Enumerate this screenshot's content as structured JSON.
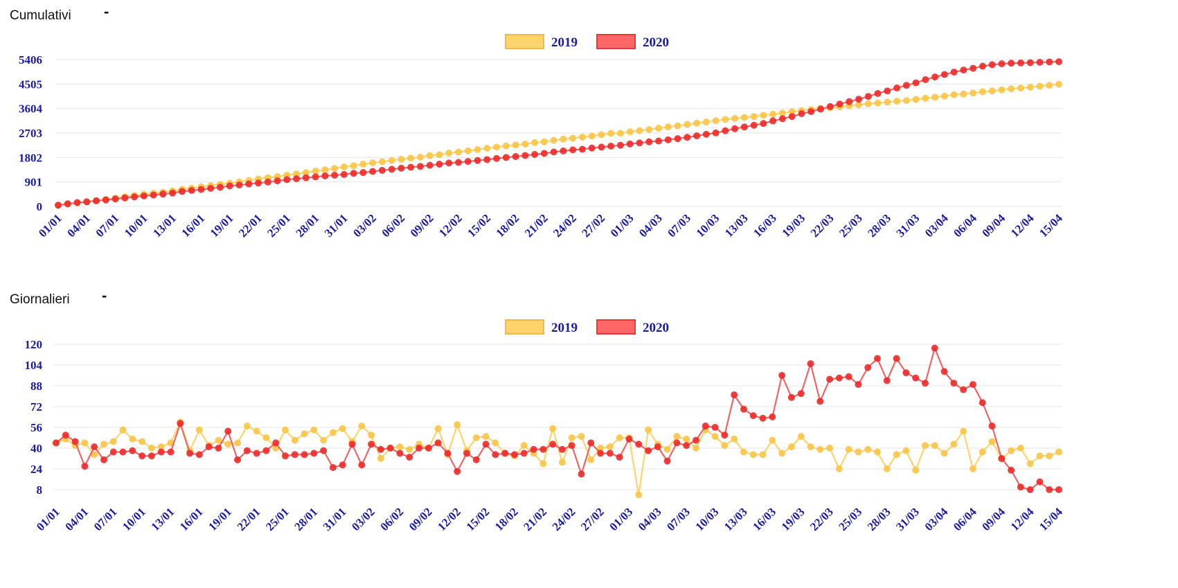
{
  "sections": [
    {
      "title": "Cumulativi",
      "collapse_label": "-"
    },
    {
      "title": "Giornalieri",
      "collapse_label": "-"
    }
  ],
  "colors": {
    "axis_text": "#1a1aa6",
    "grid": "#e6e6e6",
    "series_2019_line": "#ffd36b",
    "series_2019_point": "#f9c548",
    "series_2019_legend_fill": "#ffd36b",
    "series_2019_legend_border": "#f2b84a",
    "series_2020_line": "#f26464",
    "series_2020_point": "#ec2a2a",
    "series_2020_legend_fill": "#ff6666",
    "series_2020_legend_border": "#e23a3a"
  },
  "chart_data": [
    {
      "type": "line",
      "title": "Cumulativi",
      "legend_position": "top-center",
      "grid": true,
      "xlabel": "",
      "ylabel": "",
      "ylim": [
        0,
        5406
      ],
      "yticks": [
        0,
        901,
        1802,
        2703,
        3604,
        4505,
        5406
      ],
      "x_tick_labels": [
        "01/01",
        "04/01",
        "07/01",
        "10/01",
        "13/01",
        "16/01",
        "19/01",
        "22/01",
        "25/01",
        "28/01",
        "31/01",
        "03/02",
        "06/02",
        "09/02",
        "12/02",
        "15/02",
        "18/02",
        "21/02",
        "24/02",
        "27/02",
        "01/03",
        "04/03",
        "07/03",
        "10/03",
        "13/03",
        "16/03",
        "19/03",
        "22/03",
        "25/03",
        "28/03",
        "31/03",
        "03/04",
        "06/04",
        "09/04",
        "12/04",
        "15/04"
      ],
      "points_per_series": 106,
      "series": [
        {
          "name": "2019",
          "values": [
            44,
            91,
            133,
            177,
            212,
            255,
            300,
            354,
            400,
            445,
            485,
            526,
            570,
            630,
            668,
            722,
            764,
            810,
            853,
            897,
            954,
            1007,
            1055,
            1095,
            1149,
            1195,
            1246,
            1300,
            1346,
            1397,
            1452,
            1497,
            1554,
            1603,
            1646,
            1694,
            1733,
            1775,
            1814,
            1869,
            1904,
            1963,
            2001,
            2043,
            2091,
            2140,
            2184,
            2227,
            2261,
            2295,
            2350,
            2378,
            2428,
            2478,
            2510,
            2550,
            2591,
            2640,
            2688,
            2692,
            2746,
            2789,
            2828,
            2878,
            2926,
            2963,
            3017,
            3066,
            3107,
            3154,
            3200,
            3239,
            3275,
            3310,
            3356,
            3395,
            3436,
            3485,
            3526,
            3565,
            3605,
            3629,
            3668,
            3704,
            3743,
            3780,
            3805,
            3839,
            3874,
            3898,
            3940,
            3982,
            4018,
            4060,
            4113,
            4138,
            4174,
            4219,
            4251,
            4289,
            4329,
            4357,
            4390,
            4424,
            4458,
            4497
          ]
        },
        {
          "name": "2020",
          "values": [
            44,
            94,
            139,
            165,
            206,
            237,
            274,
            311,
            350,
            384,
            418,
            455,
            492,
            551,
            587,
            622,
            663,
            703,
            756,
            787,
            825,
            859,
            897,
            941,
            985,
            1018,
            1054,
            1086,
            1123,
            1148,
            1175,
            1218,
            1245,
            1288,
            1327,
            1366,
            1405,
            1441,
            1474,
            1514,
            1554,
            1597,
            1619,
            1655,
            1691,
            1722,
            1765,
            1800,
            1835,
            1874,
            1913,
            1952,
            2002,
            2041,
            2082,
            2103,
            2147,
            2183,
            2219,
            2252,
            2299,
            2336,
            2377,
            2407,
            2452,
            2495,
            2542,
            2599,
            2655,
            2705,
            2786,
            2858,
            2924,
            2987,
            3052,
            3148,
            3227,
            3309,
            3414,
            3490,
            3582,
            3675,
            3769,
            3858,
            3947,
            4049,
            4158,
            4250,
            4359,
            4456,
            4550,
            4667,
            4766,
            4856,
            4945,
            5020,
            5085,
            5160,
            5218,
            5250,
            5272,
            5281,
            5292,
            5306,
            5318,
            5326
          ]
        }
      ]
    },
    {
      "type": "line",
      "title": "Giornalieri",
      "legend_position": "top-center",
      "grid": true,
      "xlabel": "",
      "ylabel": "",
      "ylim": [
        0,
        120
      ],
      "yticks": [
        8,
        24,
        40,
        56,
        72,
        88,
        104,
        120
      ],
      "x_tick_labels": [
        "01/01",
        "04/01",
        "07/01",
        "10/01",
        "13/01",
        "16/01",
        "19/01",
        "22/01",
        "25/01",
        "28/01",
        "31/01",
        "03/02",
        "06/02",
        "09/02",
        "12/02",
        "15/02",
        "18/02",
        "21/02",
        "24/02",
        "27/02",
        "01/03",
        "04/03",
        "07/03",
        "10/03",
        "13/03",
        "16/03",
        "19/03",
        "22/03",
        "25/03",
        "28/03",
        "31/03",
        "03/04",
        "06/04",
        "09/04",
        "12/04",
        "15/04"
      ],
      "points_per_series": 106,
      "series": [
        {
          "name": "2019",
          "values": [
            44,
            47,
            42,
            44,
            35,
            43,
            45,
            54,
            47,
            45,
            40,
            41,
            44,
            60,
            38,
            54,
            42,
            46,
            43,
            44,
            57,
            53,
            48,
            40,
            54,
            46,
            51,
            54,
            46,
            52,
            55,
            45,
            57,
            50,
            32,
            40,
            41,
            39,
            43,
            40,
            55,
            35,
            58,
            38,
            48,
            49,
            44,
            36,
            34,
            42,
            36,
            28,
            55,
            29,
            48,
            49,
            31,
            40,
            41,
            48,
            48,
            4,
            54,
            43,
            39,
            49,
            47,
            40,
            54,
            49,
            42,
            47,
            37,
            35,
            35,
            46,
            36,
            41,
            49,
            41,
            39,
            40,
            24,
            39,
            37,
            39,
            37,
            24,
            35,
            38,
            23,
            42,
            42,
            36,
            43,
            53,
            24,
            37,
            45,
            32,
            38,
            40,
            28,
            34,
            34,
            37
          ]
        },
        {
          "name": "2020",
          "values": [
            44,
            50,
            45,
            26,
            41,
            31,
            37,
            37,
            38,
            34,
            34,
            37,
            37,
            59,
            36,
            35,
            41,
            40,
            53,
            31,
            38,
            36,
            38,
            44,
            34,
            35,
            35,
            36,
            38,
            25,
            27,
            43,
            27,
            43,
            39,
            40,
            36,
            33,
            40,
            40,
            44,
            36,
            22,
            36,
            31,
            43,
            35,
            36,
            35,
            36,
            39,
            39,
            43,
            39,
            42,
            20,
            44,
            36,
            36,
            33,
            47,
            43,
            38,
            41,
            30,
            44,
            42,
            46,
            57,
            56,
            50,
            81,
            70,
            65,
            63,
            64,
            96,
            79,
            82,
            105,
            76,
            93,
            94,
            95,
            89,
            102,
            109,
            92,
            109,
            98,
            94,
            90,
            117,
            99,
            90,
            85,
            89,
            75,
            57,
            32,
            23,
            10,
            8,
            14,
            8,
            8
          ]
        }
      ]
    }
  ]
}
